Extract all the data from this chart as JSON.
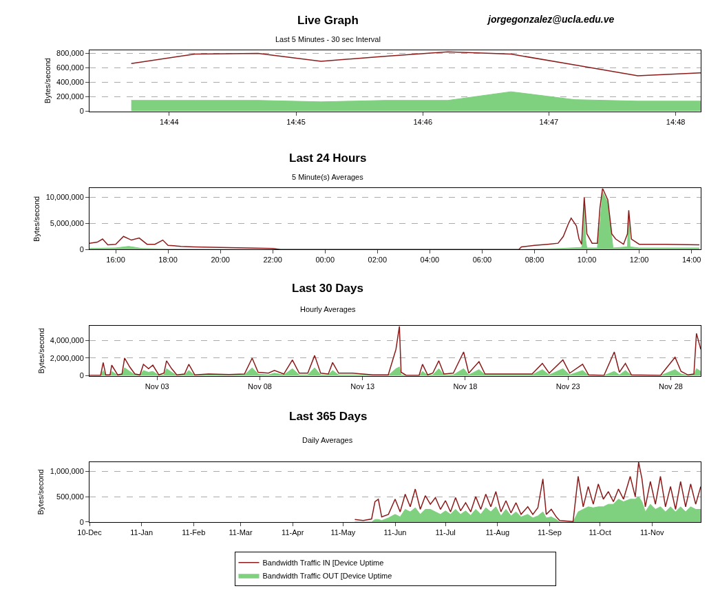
{
  "chart_data": [
    {
      "type": "line",
      "title": "Live Graph",
      "subtitle": "Last 5 Minutes - 30 sec Interval",
      "ylabel": "Bytes/second",
      "annotations": [
        "jorgegonzalez@ucla.edu.ve"
      ],
      "x": [
        14.7283,
        14.7367,
        14.745,
        14.7533,
        14.7617,
        14.77,
        14.7783,
        14.7867,
        14.795,
        14.8033
      ],
      "series": [
        {
          "color": "#8b1a1a",
          "values": [
            660000,
            790000,
            800000,
            690000,
            760000,
            820000,
            790000,
            640000,
            490000,
            530000
          ]
        },
        {
          "type": "area",
          "color": "#7fd07f",
          "values": [
            150000,
            150000,
            150000,
            130000,
            150000,
            150000,
            270000,
            160000,
            140000,
            140000
          ]
        }
      ],
      "xlim": [
        14.7228,
        14.8033
      ],
      "xticks": [
        {
          "value": 14.7333,
          "label": "14:44"
        },
        {
          "value": 14.75,
          "label": "14:45"
        },
        {
          "value": 14.7667,
          "label": "14:46"
        },
        {
          "value": 14.7833,
          "label": "14:47"
        },
        {
          "value": 14.8,
          "label": "14:48"
        }
      ],
      "ylim": [
        0,
        845000
      ],
      "yticks": [
        {
          "value": 0,
          "label": "0"
        },
        {
          "value": 200000,
          "label": "200,000"
        },
        {
          "value": 400000,
          "label": "400,000"
        },
        {
          "value": 600000,
          "label": "600,000"
        },
        {
          "value": 800000,
          "label": "800,000"
        }
      ],
      "grid": "y"
    },
    {
      "type": "line",
      "title": "Last 24 Hours",
      "subtitle": "5 Minute(s) Averages",
      "ylabel": "Bytes/second",
      "series": [
        {
          "color": "#8b1a1a",
          "x": [
            "--11-29T15:00",
            "--11-29T15:18",
            "--11-29T15:30",
            "--11-29T15:42",
            "--11-29T16:00",
            "--11-29T16:18",
            "--11-29T16:36",
            "--11-29T16:54",
            "--11-29T17:12",
            "--11-29T17:30",
            "--11-29T17:48",
            "--11-29T18:00",
            "--11-29T18:30",
            "--11-29T19:00",
            "--11-29T20:00",
            "--11-29T21:00",
            "--11-29T22:00",
            "--11-29T22:18",
            "--11-30T00:00",
            "--11-30T04:00",
            "--11-30T07:24",
            "--11-30T07:30",
            "--11-30T08:00",
            "--11-30T08:30",
            "--11-30T08:54",
            "--11-30T09:06",
            "--11-30T09:18",
            "--11-30T09:24",
            "--11-30T09:36",
            "--11-30T09:42",
            "--11-30T09:48",
            "--11-30T09:54",
            "--11-30T10:00",
            "--11-30T10:12",
            "--11-30T10:24",
            "--11-30T10:30",
            "--11-30T10:36",
            "--11-30T10:48",
            "--11-30T10:57",
            "--11-30T11:06",
            "--11-30T11:24",
            "--11-30T11:33",
            "--11-30T11:36",
            "--11-30T11:42",
            "--11-30T12:00",
            "--11-30T13:00",
            "--11-30T14:18"
          ],
          "values": [
            1200000,
            1400000,
            2000000,
            900000,
            1000000,
            2500000,
            1800000,
            2200000,
            1000000,
            1000000,
            1800000,
            800000,
            600000,
            500000,
            400000,
            300000,
            200000,
            0,
            0,
            0,
            0,
            500000,
            800000,
            1000000,
            1200000,
            2500000,
            5000000,
            6000000,
            4500000,
            2000000,
            1000000,
            10000000,
            3000000,
            1200000,
            1200000,
            8000000,
            11700000,
            9500000,
            3000000,
            2000000,
            1000000,
            3000000,
            7500000,
            2000000,
            1000000,
            1000000,
            900000
          ]
        },
        {
          "type": "area",
          "color": "#7fd07f",
          "x": [
            "--11-29T15:00",
            "--11-29T16:00",
            "--11-29T16:30",
            "--11-29T17:00",
            "--11-29T18:00",
            "--11-29T22:00",
            "--11-30T07:24",
            "--11-30T09:00",
            "--11-30T09:48",
            "--11-30T09:51",
            "--11-30T09:54",
            "--11-30T09:57",
            "--11-30T10:00",
            "--11-30T10:24",
            "--11-30T10:30",
            "--11-30T10:36",
            "--11-30T10:48",
            "--11-30T10:57",
            "--11-30T11:00",
            "--11-30T11:33",
            "--11-30T11:36",
            "--11-30T11:39",
            "--11-30T12:00",
            "--11-30T14:18"
          ],
          "values": [
            200000,
            300000,
            600000,
            200000,
            100000,
            0,
            0,
            200000,
            400000,
            2000000,
            8000000,
            2000000,
            300000,
            300000,
            5000000,
            11000000,
            9000000,
            2500000,
            300000,
            500000,
            7000000,
            500000,
            300000,
            300000
          ]
        }
      ],
      "xlim": [
        "--11-29T15:00",
        "--11-30T14:21"
      ],
      "xticks": [
        {
          "value": "--11-29T16:00",
          "label": "16:00"
        },
        {
          "value": "--11-29T18:00",
          "label": "18:00"
        },
        {
          "value": "--11-29T20:00",
          "label": "20:00"
        },
        {
          "value": "--11-29T22:00",
          "label": "22:00"
        },
        {
          "value": "--11-30T00:00",
          "label": "00:00"
        },
        {
          "value": "--11-30T02:00",
          "label": "02:00"
        },
        {
          "value": "--11-30T04:00",
          "label": "04:00"
        },
        {
          "value": "--11-30T06:00",
          "label": "06:00"
        },
        {
          "value": "--11-30T08:00",
          "label": "08:00"
        },
        {
          "value": "--11-30T10:00",
          "label": "10:00"
        },
        {
          "value": "--11-30T12:00",
          "label": "12:00"
        },
        {
          "value": "--11-30T14:00",
          "label": "14:00"
        }
      ],
      "ylim": [
        0,
        11700000
      ],
      "yticks": [
        {
          "value": 0,
          "label": "0"
        },
        {
          "value": 5000000,
          "label": "5,000,000"
        },
        {
          "value": 10000000,
          "label": "10,000,000"
        }
      ],
      "grid": "y"
    },
    {
      "type": "line",
      "title": "Last 30 Days",
      "subtitle": "Hourly Averages",
      "ylabel": "Bytes/second",
      "x": [
        "--10-30T17:00",
        "--10-31T06:00",
        "--10-31T09:00",
        "--10-31T12:00",
        "--10-31T17:00",
        "--10-31T19:00",
        "--11-01T02:00",
        "--11-01T07:00",
        "--11-01T10:00",
        "--11-01T16:00",
        "--11-01T22:00",
        "--11-02T04:00",
        "--11-02T08:00",
        "--11-02T14:00",
        "--11-02T19:00",
        "--11-03T02:00",
        "--11-03T08:00",
        "--11-03T11:00",
        "--11-03T17:00",
        "--11-03T23:00",
        "--11-04T08:00",
        "--11-04T13:00",
        "--11-04T20:00",
        "--11-05T12:00",
        "--11-06T12:00",
        "--11-07T06:00",
        "--11-07T15:00",
        "--11-07T22:00",
        "--11-08T10:00",
        "--11-08T17:00",
        "--11-09T04:00",
        "--11-09T14:00",
        "--11-09T22:00",
        "--11-10T08:00",
        "--11-10T16:00",
        "--11-10T23:00",
        "--11-11T08:00",
        "--11-11T13:00",
        "--11-11T20:00",
        "--11-12T12:00",
        "--11-13T12:00",
        "--11-14T06:00",
        "--11-14T15:00",
        "--11-14T19:00",
        "--11-14T21:00",
        "--11-15T03:00",
        "--11-15T18:00",
        "--11-15T22:00",
        "--11-16T04:00",
        "--11-16T10:00",
        "--11-16T17:00",
        "--11-16T23:00",
        "--11-17T10:00",
        "--11-17T22:00",
        "--11-18T04:00",
        "--11-18T16:00",
        "--11-18T23:00",
        "--11-19T12:00",
        "--11-20T12:00",
        "--11-21T06:00",
        "--11-21T18:00",
        "--11-22T02:00",
        "--11-22T18:00",
        "--11-23T02:00",
        "--11-23T17:00",
        "--11-24T00:00",
        "--11-24T18:00",
        "--11-25T06:00",
        "--11-25T12:00",
        "--11-25T19:00",
        "--11-26T02:00",
        "--11-27T12:00",
        "--11-28T05:00",
        "--11-28T12:00",
        "--11-28T20:00",
        "--11-29T03:00",
        "--11-29T06:00",
        "--11-29T11:00"
      ],
      "series": [
        {
          "color": "#8b1a1a",
          "values": [
            50000,
            50000,
            1500000,
            100000,
            100000,
            1200000,
            100000,
            200000,
            2000000,
            1000000,
            200000,
            100000,
            1300000,
            800000,
            1200000,
            100000,
            300000,
            1700000,
            800000,
            100000,
            200000,
            1300000,
            100000,
            200000,
            150000,
            200000,
            2000000,
            400000,
            300000,
            600000,
            200000,
            1800000,
            300000,
            300000,
            2300000,
            300000,
            200000,
            1500000,
            300000,
            300000,
            100000,
            100000,
            3000000,
            5600000,
            400000,
            50000,
            50000,
            1300000,
            100000,
            300000,
            1700000,
            200000,
            300000,
            2700000,
            300000,
            1600000,
            200000,
            200000,
            200000,
            200000,
            1400000,
            300000,
            1800000,
            300000,
            1300000,
            100000,
            50000,
            2700000,
            400000,
            1400000,
            100000,
            50000,
            2100000,
            500000,
            100000,
            200000,
            4800000,
            3000000
          ]
        },
        {
          "type": "area",
          "color": "#7fd07f",
          "values": [
            20000,
            20000,
            600000,
            50000,
            50000,
            500000,
            50000,
            100000,
            900000,
            500000,
            100000,
            50000,
            600000,
            400000,
            500000,
            50000,
            100000,
            800000,
            400000,
            50000,
            100000,
            600000,
            50000,
            100000,
            50000,
            100000,
            900000,
            200000,
            100000,
            300000,
            100000,
            800000,
            100000,
            100000,
            900000,
            100000,
            100000,
            600000,
            100000,
            100000,
            50000,
            50000,
            800000,
            1000000,
            100000,
            20000,
            20000,
            500000,
            50000,
            100000,
            800000,
            100000,
            100000,
            800000,
            100000,
            700000,
            100000,
            100000,
            100000,
            100000,
            700000,
            100000,
            800000,
            100000,
            600000,
            50000,
            20000,
            500000,
            100000,
            600000,
            50000,
            20000,
            700000,
            200000,
            50000,
            100000,
            800000,
            500000
          ]
        }
      ],
      "xlim": [
        "--10-30T17:00",
        "--11-29T11:00"
      ],
      "xticks": [
        {
          "value": "--11-03",
          "label": "Nov 03"
        },
        {
          "value": "--11-08",
          "label": "Nov 08"
        },
        {
          "value": "--11-13",
          "label": "Nov 13"
        },
        {
          "value": "--11-18",
          "label": "Nov 18"
        },
        {
          "value": "--11-23",
          "label": "Nov 23"
        },
        {
          "value": "--11-28",
          "label": "Nov 28"
        }
      ],
      "ylim": [
        0,
        5650000
      ],
      "yticks": [
        {
          "value": 0,
          "label": "0"
        },
        {
          "value": 2000000,
          "label": "2,000,000"
        },
        {
          "value": 4000000,
          "label": "4,000,000"
        }
      ],
      "grid": "y"
    },
    {
      "type": "line",
      "title": "Last 365 Days",
      "subtitle": "Daily Averages",
      "ylabel": "Bytes/second",
      "legend": "bottom",
      "x": [
        "2011-05-08",
        "2011-05-13",
        "2011-05-18",
        "2011-05-20",
        "2011-05-22",
        "2011-05-24",
        "2011-05-28",
        "2011-06-01",
        "2011-06-04",
        "2011-06-07",
        "2011-06-10",
        "2011-06-13",
        "2011-06-16",
        "2011-06-19",
        "2011-06-22",
        "2011-06-25",
        "2011-06-28",
        "2011-07-01",
        "2011-07-04",
        "2011-07-07",
        "2011-07-10",
        "2011-07-13",
        "2011-07-16",
        "2011-07-19",
        "2011-07-22",
        "2011-07-25",
        "2011-07-28",
        "2011-07-31",
        "2011-08-03",
        "2011-08-06",
        "2011-08-09",
        "2011-08-12",
        "2011-08-15",
        "2011-08-19",
        "2011-08-22",
        "2011-08-25",
        "2011-08-28",
        "2011-08-30",
        "2011-09-02",
        "2011-09-05",
        "2011-09-07",
        "2011-09-15",
        "2011-09-18",
        "2011-09-21",
        "2011-09-24",
        "2011-09-27",
        "2011-09-30",
        "2011-10-03",
        "2011-10-06",
        "2011-10-09",
        "2011-10-12",
        "2011-10-15",
        "2011-10-19",
        "2011-10-22",
        "2011-10-24",
        "2011-10-26",
        "2011-10-28",
        "2011-10-31",
        "2011-11-03",
        "2011-11-06",
        "2011-11-09",
        "2011-11-12",
        "2011-11-15",
        "2011-11-18",
        "2011-11-21",
        "2011-11-24",
        "2011-11-27",
        "2011-11-30"
      ],
      "series": [
        {
          "name": "Bandwidth Traffic IN [Device Uptime",
          "color": "#8b1a1a",
          "values": [
            50000,
            30000,
            60000,
            400000,
            450000,
            100000,
            150000,
            450000,
            200000,
            550000,
            300000,
            650000,
            250000,
            520000,
            350000,
            480000,
            250000,
            420000,
            200000,
            480000,
            220000,
            380000,
            200000,
            500000,
            250000,
            550000,
            300000,
            600000,
            200000,
            420000,
            180000,
            380000,
            150000,
            300000,
            150000,
            280000,
            850000,
            150000,
            250000,
            100000,
            30000,
            10000,
            900000,
            300000,
            700000,
            350000,
            750000,
            450000,
            600000,
            400000,
            650000,
            450000,
            900000,
            500000,
            1180000,
            850000,
            300000,
            800000,
            350000,
            900000,
            300000,
            700000,
            250000,
            800000,
            300000,
            750000,
            350000,
            700000
          ]
        },
        {
          "type": "area",
          "name": "Bandwidth Traffic OUT [Device Uptime",
          "color": "#7fd07f",
          "values": [
            0,
            0,
            0,
            50000,
            50000,
            30000,
            80000,
            150000,
            100000,
            250000,
            200000,
            280000,
            150000,
            250000,
            250000,
            200000,
            150000,
            220000,
            150000,
            250000,
            150000,
            220000,
            130000,
            250000,
            150000,
            280000,
            200000,
            300000,
            120000,
            250000,
            120000,
            200000,
            100000,
            150000,
            80000,
            120000,
            200000,
            80000,
            100000,
            50000,
            0,
            0,
            200000,
            250000,
            300000,
            280000,
            300000,
            300000,
            350000,
            350000,
            450000,
            400000,
            450000,
            450000,
            500000,
            400000,
            200000,
            350000,
            250000,
            300000,
            200000,
            300000,
            200000,
            300000,
            200000,
            300000,
            250000,
            250000
          ]
        }
      ],
      "xlim": [
        "2010-12-01",
        "2011-11-30"
      ],
      "xticks": [
        {
          "value": "2010-12-01",
          "label": "10-Dec"
        },
        {
          "value": "2011-01-01",
          "label": "11-Jan"
        },
        {
          "value": "2011-02-01",
          "label": "11-Feb"
        },
        {
          "value": "2011-03-01",
          "label": "11-Mar"
        },
        {
          "value": "2011-04-01",
          "label": "11-Apr"
        },
        {
          "value": "2011-05-01",
          "label": "11-May"
        },
        {
          "value": "2011-06-01",
          "label": "11-Jun"
        },
        {
          "value": "2011-07-01",
          "label": "11-Jul"
        },
        {
          "value": "2011-08-01",
          "label": "11-Aug"
        },
        {
          "value": "2011-09-01",
          "label": "11-Sep"
        },
        {
          "value": "2011-10-01",
          "label": "11-Oct"
        },
        {
          "value": "2011-11-01",
          "label": "11-Nov"
        }
      ],
      "ylim": [
        0,
        1180000
      ],
      "yticks": [
        {
          "value": 0,
          "label": "0"
        },
        {
          "value": 500000,
          "label": "500,000"
        },
        {
          "value": 1000000,
          "label": "1,000,000"
        }
      ],
      "grid": "y"
    }
  ]
}
